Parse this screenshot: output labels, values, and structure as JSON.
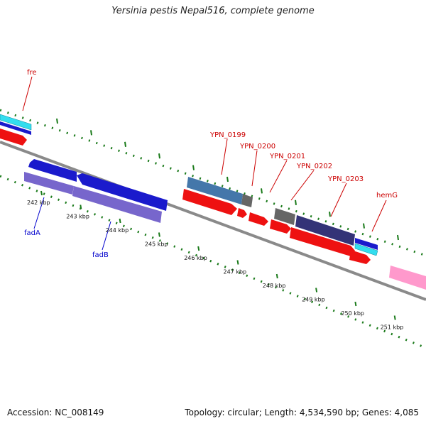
{
  "title": "Yersinia pestis Nepal516, complete genome",
  "footer": {
    "accession": "Accession: NC_008149",
    "topology": "Topology: circular; Length: 4,534,590 bp; Genes: 4,085"
  },
  "colors": {
    "label_red": "#cc0000",
    "label_blue": "#0000cc",
    "tick_green": "#1a7a1a",
    "backbone": "#888888"
  },
  "kbp_labels": [
    "242 kbp",
    "243 kbp",
    "244 kbp",
    "245 kbp",
    "246 kbp",
    "247 kbp",
    "248 kbp",
    "249 kbp",
    "250 kbp",
    "251 kbp"
  ],
  "gene_labels": {
    "fre": "fre",
    "fadA": "fadA",
    "fadB": "fadB",
    "ypn0199": "YPN_0199",
    "ypn0200": "YPN_0200",
    "ypn0201": "YPN_0201",
    "ypn0202": "YPN_0202",
    "ypn0203": "YPN_0203",
    "hemG": "hemG"
  }
}
